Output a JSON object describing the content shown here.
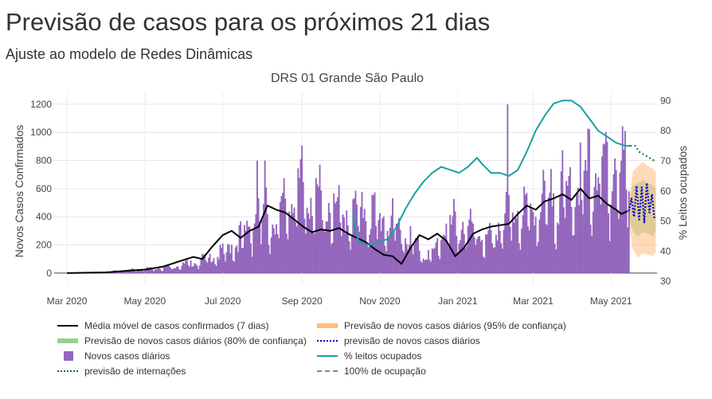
{
  "page": {
    "title": "Previsão de casos para os próximos 21 dias",
    "subtitle": "Ajuste ao modelo de Redes Dinâmicas"
  },
  "colors": {
    "bars": "#9467bd",
    "moving_average": "#000000",
    "forecast_cases": "#0000cc",
    "pi80": "#98d090",
    "pi95": "#ffbb80",
    "beds": "#17a2a0",
    "hosp_forecast": "#1a6b3a",
    "capacity": "#888888"
  },
  "legend": [
    {
      "label": "Média móvel de casos confirmados (7 dias)",
      "symbol": "line",
      "color": "#000000"
    },
    {
      "label": "Previsão de novos casos diários (95% de confiança)",
      "symbol": "band",
      "color": "#ffbb80"
    },
    {
      "label": "Previsão de novos casos diários (80% de confiança)",
      "symbol": "band",
      "color": "#98d090"
    },
    {
      "label": "previsão de novos casos diários",
      "symbol": "dots",
      "color": "#0000cc"
    },
    {
      "label": "Novos casos diários",
      "symbol": "square",
      "color": "#9467bd"
    },
    {
      "label": "% leitos ocupados",
      "symbol": "line",
      "color": "#17a2a0"
    },
    {
      "label": "previsão de internações",
      "symbol": "dots",
      "color": "#1a6b3a"
    },
    {
      "label": "100% de ocupação",
      "symbol": "dash",
      "color": "#888888"
    }
  ],
  "chart_data": {
    "type": "bar",
    "title": "DRS 01 Grande São Paulo",
    "ylabel": "Novos Casos Confirmados",
    "y2label": "% Leitos ocupados",
    "ylim": [
      -80,
      1290
    ],
    "y2lim": [
      29,
      93
    ],
    "yticks": [
      0,
      200,
      400,
      600,
      800,
      1000,
      1200
    ],
    "y2ticks": [
      30,
      40,
      50,
      60,
      70,
      80,
      90
    ],
    "xlim": [
      "2020-02-20",
      "2021-06-06"
    ],
    "xticks": [
      {
        "date": "2020-03-01",
        "label": "Mar 2020"
      },
      {
        "date": "2020-05-01",
        "label": "May 2020"
      },
      {
        "date": "2020-07-01",
        "label": "Jul 2020"
      },
      {
        "date": "2020-09-01",
        "label": "Sep 2020"
      },
      {
        "date": "2020-11-01",
        "label": "Nov 2020"
      },
      {
        "date": "2021-01-01",
        "label": "Jan 2021"
      },
      {
        "date": "2021-03-01",
        "label": "Mar 2021"
      },
      {
        "date": "2021-05-01",
        "label": "May 2021"
      }
    ],
    "grid": true,
    "legend_position": "bottom",
    "series": [
      {
        "name": "Média móvel de casos confirmados (7 dias)",
        "type": "line",
        "points": [
          [
            "2020-03-01",
            0
          ],
          [
            "2020-04-01",
            5
          ],
          [
            "2020-04-15",
            15
          ],
          [
            "2020-05-01",
            25
          ],
          [
            "2020-05-15",
            45
          ],
          [
            "2020-06-01",
            95
          ],
          [
            "2020-06-08",
            115
          ],
          [
            "2020-06-15",
            100
          ],
          [
            "2020-06-22",
            180
          ],
          [
            "2020-07-01",
            270
          ],
          [
            "2020-07-08",
            300
          ],
          [
            "2020-07-15",
            250
          ],
          [
            "2020-07-22",
            300
          ],
          [
            "2020-07-29",
            330
          ],
          [
            "2020-08-05",
            480
          ],
          [
            "2020-08-12",
            450
          ],
          [
            "2020-08-19",
            430
          ],
          [
            "2020-08-26",
            380
          ],
          [
            "2020-09-02",
            330
          ],
          [
            "2020-09-09",
            290
          ],
          [
            "2020-09-16",
            310
          ],
          [
            "2020-09-23",
            300
          ],
          [
            "2020-09-30",
            320
          ],
          [
            "2020-10-07",
            280
          ],
          [
            "2020-10-14",
            250
          ],
          [
            "2020-10-21",
            220
          ],
          [
            "2020-10-28",
            170
          ],
          [
            "2020-11-04",
            130
          ],
          [
            "2020-11-11",
            120
          ],
          [
            "2020-11-18",
            65
          ],
          [
            "2020-11-25",
            180
          ],
          [
            "2020-12-02",
            270
          ],
          [
            "2020-12-09",
            240
          ],
          [
            "2020-12-16",
            280
          ],
          [
            "2020-12-23",
            230
          ],
          [
            "2020-12-30",
            120
          ],
          [
            "2021-01-06",
            180
          ],
          [
            "2021-01-13",
            280
          ],
          [
            "2021-01-20",
            310
          ],
          [
            "2021-01-27",
            330
          ],
          [
            "2021-02-03",
            340
          ],
          [
            "2021-02-10",
            350
          ],
          [
            "2021-02-17",
            420
          ],
          [
            "2021-02-24",
            480
          ],
          [
            "2021-03-03",
            450
          ],
          [
            "2021-03-10",
            510
          ],
          [
            "2021-03-17",
            530
          ],
          [
            "2021-03-24",
            560
          ],
          [
            "2021-03-31",
            520
          ],
          [
            "2021-04-07",
            600
          ],
          [
            "2021-04-14",
            530
          ],
          [
            "2021-04-21",
            550
          ],
          [
            "2021-04-28",
            490
          ],
          [
            "2021-05-05",
            450
          ],
          [
            "2021-05-09",
            420
          ],
          [
            "2021-05-14",
            440
          ]
        ]
      },
      {
        "name": "% leitos ocupados",
        "type": "line",
        "axis": "y2",
        "points": [
          [
            "2020-10-11",
            53
          ],
          [
            "2020-10-13",
            46
          ],
          [
            "2020-10-16",
            43
          ],
          [
            "2020-10-24",
            42
          ],
          [
            "2020-10-31",
            43
          ],
          [
            "2020-11-07",
            44
          ],
          [
            "2020-11-14",
            48
          ],
          [
            "2020-11-21",
            54
          ],
          [
            "2020-11-28",
            59
          ],
          [
            "2020-12-05",
            63
          ],
          [
            "2020-12-12",
            66
          ],
          [
            "2020-12-19",
            68
          ],
          [
            "2020-12-26",
            67
          ],
          [
            "2021-01-02",
            66
          ],
          [
            "2021-01-09",
            68
          ],
          [
            "2021-01-16",
            71
          ],
          [
            "2021-01-20",
            69
          ],
          [
            "2021-01-27",
            66
          ],
          [
            "2021-02-03",
            66
          ],
          [
            "2021-02-10",
            65
          ],
          [
            "2021-02-17",
            67
          ],
          [
            "2021-02-24",
            73
          ],
          [
            "2021-03-03",
            80
          ],
          [
            "2021-03-10",
            85
          ],
          [
            "2021-03-17",
            89
          ],
          [
            "2021-03-24",
            90
          ],
          [
            "2021-03-31",
            90
          ],
          [
            "2021-04-07",
            88
          ],
          [
            "2021-04-14",
            84
          ],
          [
            "2021-04-21",
            80
          ],
          [
            "2021-04-28",
            78
          ],
          [
            "2021-05-05",
            76
          ],
          [
            "2021-05-12",
            75
          ],
          [
            "2021-05-16",
            75
          ]
        ]
      },
      {
        "name": "previsão de internações",
        "type": "line",
        "axis": "y2",
        "points": [
          [
            "2021-05-16",
            75
          ],
          [
            "2021-05-20",
            75
          ],
          [
            "2021-05-23",
            73
          ],
          [
            "2021-05-27",
            72
          ],
          [
            "2021-05-31",
            71
          ],
          [
            "2021-06-04",
            70
          ]
        ]
      },
      {
        "name": "previsão de novos casos diários",
        "type": "line",
        "points": [
          [
            "2021-05-15",
            440
          ],
          [
            "2021-05-17",
            530
          ],
          [
            "2021-05-19",
            400
          ],
          [
            "2021-05-21",
            620
          ],
          [
            "2021-05-23",
            380
          ],
          [
            "2021-05-25",
            610
          ],
          [
            "2021-05-27",
            360
          ],
          [
            "2021-05-29",
            640
          ],
          [
            "2021-05-31",
            430
          ],
          [
            "2021-06-02",
            560
          ],
          [
            "2021-06-04",
            380
          ]
        ]
      },
      {
        "name": "Previsão de novos casos diários (80% de confiança)",
        "type": "band",
        "points": [
          [
            "2021-05-15",
            380,
            480
          ],
          [
            "2021-05-18",
            300,
            620
          ],
          [
            "2021-05-22",
            260,
            640
          ],
          [
            "2021-05-26",
            290,
            660
          ],
          [
            "2021-05-30",
            280,
            640
          ],
          [
            "2021-06-03",
            260,
            620
          ],
          [
            "2021-06-05",
            300,
            600
          ]
        ]
      },
      {
        "name": "Previsão de novos casos diários (95% de confiança)",
        "type": "band",
        "points": [
          [
            "2021-05-15",
            350,
            520
          ],
          [
            "2021-05-18",
            170,
            720
          ],
          [
            "2021-05-22",
            110,
            760
          ],
          [
            "2021-05-26",
            140,
            790
          ],
          [
            "2021-05-30",
            130,
            760
          ],
          [
            "2021-06-03",
            120,
            740
          ],
          [
            "2021-06-05",
            150,
            720
          ]
        ]
      }
    ],
    "bars_weekly": {
      "name": "Novos casos diários",
      "start": "2020-03-02",
      "step_days": 7,
      "bases": [
        0,
        0,
        2,
        3,
        5,
        8,
        12,
        18,
        22,
        25,
        28,
        32,
        38,
        45,
        55,
        70,
        85,
        100,
        125,
        170,
        220,
        300,
        290,
        270,
        330,
        400,
        440,
        410,
        380,
        340,
        320,
        300,
        310,
        330,
        310,
        280,
        260,
        240,
        190,
        150,
        90,
        110,
        230,
        250,
        240,
        230,
        200,
        160,
        220,
        300,
        320,
        330,
        330,
        340,
        380,
        410,
        440,
        470,
        500,
        520,
        560,
        520,
        560,
        510,
        490,
        470,
        440,
        450,
        470
      ]
    }
  }
}
